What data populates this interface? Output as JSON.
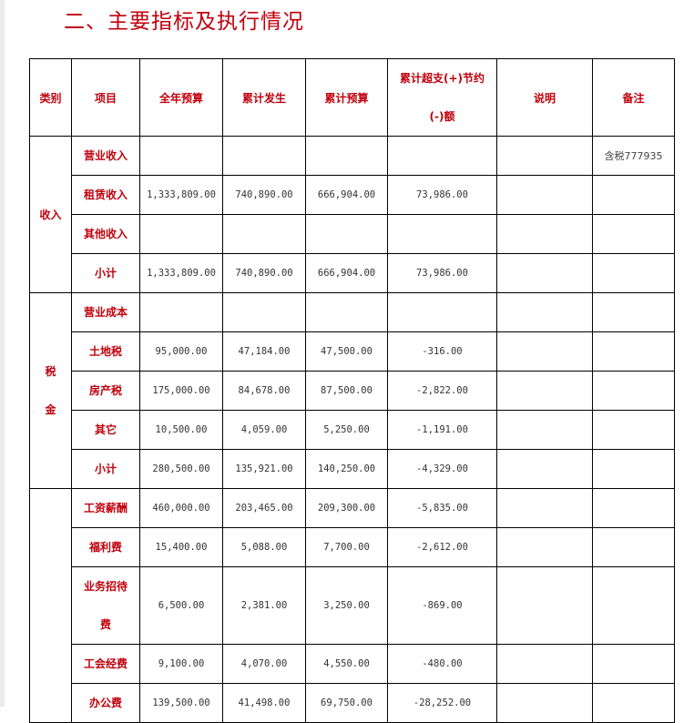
{
  "title": "二、主要指标及执行情况",
  "headers": [
    "类别",
    "项目",
    "全年预算",
    "累计发生",
    "累计预算",
    "累计超支(+)节约(-)额",
    "说明",
    "备注"
  ],
  "header_overrun_lines": [
    "累计超支(+)节约",
    "(-)额"
  ],
  "groups": [
    {
      "category": "收入",
      "category_lines": [
        "收入"
      ],
      "rows": [
        {
          "item": "营业收入",
          "annual_budget": "",
          "cumulative_actual": "",
          "cumulative_budget": "",
          "variance": "",
          "explanation": "",
          "remark": "含税777935"
        },
        {
          "item": "租赁收入",
          "annual_budget": "1,333,809.00",
          "cumulative_actual": "740,890.00",
          "cumulative_budget": "666,904.00",
          "variance": "73,986.00",
          "explanation": "",
          "remark": ""
        },
        {
          "item": "其他收入",
          "annual_budget": "",
          "cumulative_actual": "",
          "cumulative_budget": "",
          "variance": "",
          "explanation": "",
          "remark": ""
        },
        {
          "item": "小计",
          "annual_budget": "1,333,809.00",
          "cumulative_actual": "740,890.00",
          "cumulative_budget": "666,904.00",
          "variance": "73,986.00",
          "explanation": "",
          "remark": ""
        }
      ]
    },
    {
      "category": "税金",
      "category_lines": [
        "税",
        "金"
      ],
      "rows": [
        {
          "item": "营业成本",
          "annual_budget": "",
          "cumulative_actual": "",
          "cumulative_budget": "",
          "variance": "",
          "explanation": "",
          "remark": ""
        },
        {
          "item": "土地税",
          "annual_budget": "95,000.00",
          "cumulative_actual": "47,184.00",
          "cumulative_budget": "47,500.00",
          "variance": "-316.00",
          "explanation": "",
          "remark": ""
        },
        {
          "item": "房产税",
          "annual_budget": "175,000.00",
          "cumulative_actual": "84,678.00",
          "cumulative_budget": "87,500.00",
          "variance": "-2,822.00",
          "explanation": "",
          "remark": ""
        },
        {
          "item": "其它",
          "annual_budget": "10,500.00",
          "cumulative_actual": "4,059.00",
          "cumulative_budget": "5,250.00",
          "variance": "-1,191.00",
          "explanation": "",
          "remark": ""
        },
        {
          "item": "小计",
          "annual_budget": "280,500.00",
          "cumulative_actual": "135,921.00",
          "cumulative_budget": "140,250.00",
          "variance": "-4,329.00",
          "explanation": "",
          "remark": ""
        }
      ]
    },
    {
      "category": "",
      "category_lines": [],
      "rows": [
        {
          "item": "工资薪酬",
          "annual_budget": "460,000.00",
          "cumulative_actual": "203,465.00",
          "cumulative_budget": "209,300.00",
          "variance": "-5,835.00",
          "explanation": "",
          "remark": ""
        },
        {
          "item": "福利费",
          "annual_budget": "15,400.00",
          "cumulative_actual": "5,088.00",
          "cumulative_budget": "7,700.00",
          "variance": "-2,612.00",
          "explanation": "",
          "remark": ""
        },
        {
          "item": "业务招待费",
          "item_lines": [
            "业务招待",
            "费"
          ],
          "annual_budget": "6,500.00",
          "cumulative_actual": "2,381.00",
          "cumulative_budget": "3,250.00",
          "variance": "-869.00",
          "explanation": "",
          "remark": ""
        },
        {
          "item": "工会经费",
          "annual_budget": "9,100.00",
          "cumulative_actual": "4,070.00",
          "cumulative_budget": "4,550.00",
          "variance": "-480.00",
          "explanation": "",
          "remark": ""
        },
        {
          "item": "办公费",
          "annual_budget": "139,500.00",
          "cumulative_actual": "41,498.00",
          "cumulative_budget": "69,750.00",
          "variance": "-28,252.00",
          "explanation": "",
          "remark": ""
        }
      ]
    }
  ]
}
